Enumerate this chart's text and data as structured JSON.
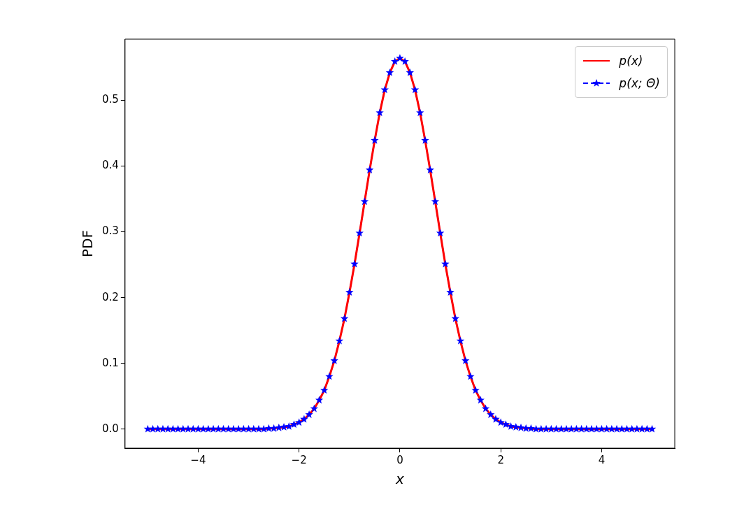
{
  "chart_data": {
    "type": "line",
    "xlabel": "x",
    "ylabel": "PDF",
    "x": [
      -5,
      -4.9,
      -4.8,
      -4.7,
      -4.6,
      -4.5,
      -4.4,
      -4.3,
      -4.2,
      -4.1,
      -4,
      -3.9,
      -3.8,
      -3.7,
      -3.6,
      -3.5,
      -3.4,
      -3.3,
      -3.2,
      -3.1,
      -3,
      -2.9,
      -2.8,
      -2.7,
      -2.6,
      -2.5,
      -2.4,
      -2.3,
      -2.2,
      -2.1,
      -2,
      -1.9,
      -1.8,
      -1.7,
      -1.6,
      -1.5,
      -1.4,
      -1.3,
      -1.2,
      -1.1,
      -1,
      -0.9,
      -0.8,
      -0.7,
      -0.6,
      -0.5,
      -0.4,
      -0.3,
      -0.2,
      -0.1,
      0,
      0.1,
      0.2,
      0.3,
      0.4,
      0.5,
      0.6,
      0.7,
      0.8,
      0.9,
      1,
      1.1,
      1.2,
      1.3,
      1.4,
      1.5,
      1.6,
      1.7,
      1.8,
      1.9,
      2,
      2.1,
      2.2,
      2.3,
      2.4,
      2.5,
      2.6,
      2.7,
      2.8,
      2.9,
      3,
      3.1,
      3.2,
      3.3,
      3.4,
      3.5,
      3.6,
      3.7,
      3.8,
      3.9,
      4,
      4.1,
      4.2,
      4.3,
      4.4,
      4.5,
      4.6,
      4.7,
      4.8,
      4.9,
      5
    ],
    "series": [
      {
        "name": "p(x)",
        "color": "#ff0000",
        "marker": "none",
        "line_style": "solid",
        "values": [
          0,
          0,
          0,
          0,
          0,
          0,
          0,
          0,
          0,
          0,
          0,
          0,
          0,
          0,
          0,
          0,
          0,
          0,
          0,
          0,
          0,
          0,
          0,
          0,
          0.001,
          0.001,
          0.002,
          0.003,
          0.004,
          0.007,
          0.01,
          0.015,
          0.022,
          0.031,
          0.044,
          0.059,
          0.08,
          0.104,
          0.134,
          0.168,
          0.208,
          0.251,
          0.298,
          0.346,
          0.394,
          0.439,
          0.481,
          0.516,
          0.542,
          0.559,
          0.564,
          0.559,
          0.542,
          0.516,
          0.481,
          0.439,
          0.394,
          0.346,
          0.298,
          0.251,
          0.208,
          0.168,
          0.134,
          0.104,
          0.08,
          0.059,
          0.044,
          0.031,
          0.022,
          0.015,
          0.01,
          0.007,
          0.004,
          0.003,
          0.002,
          0.001,
          0.001,
          0,
          0,
          0,
          0,
          0,
          0,
          0,
          0,
          0,
          0,
          0,
          0,
          0,
          0,
          0,
          0,
          0,
          0,
          0,
          0,
          0,
          0,
          0,
          0
        ]
      },
      {
        "name": "p(x; Θ)",
        "color": "#0000ff",
        "marker": "star",
        "line_style": "dashed",
        "values": [
          0,
          0,
          0,
          0,
          0,
          0,
          0,
          0,
          0,
          0,
          0,
          0,
          0,
          0,
          0,
          0,
          0,
          0,
          0,
          0,
          0,
          0,
          0,
          0,
          0.001,
          0.001,
          0.002,
          0.003,
          0.004,
          0.007,
          0.01,
          0.015,
          0.022,
          0.031,
          0.044,
          0.059,
          0.08,
          0.104,
          0.134,
          0.168,
          0.208,
          0.251,
          0.298,
          0.346,
          0.394,
          0.439,
          0.481,
          0.516,
          0.542,
          0.559,
          0.564,
          0.559,
          0.542,
          0.516,
          0.481,
          0.439,
          0.394,
          0.346,
          0.298,
          0.251,
          0.208,
          0.168,
          0.134,
          0.104,
          0.08,
          0.059,
          0.044,
          0.031,
          0.022,
          0.015,
          0.01,
          0.007,
          0.004,
          0.003,
          0.002,
          0.001,
          0.001,
          0,
          0,
          0,
          0,
          0,
          0,
          0,
          0,
          0,
          0,
          0,
          0,
          0,
          0,
          0,
          0,
          0,
          0,
          0,
          0,
          0,
          0,
          0,
          0
        ]
      }
    ],
    "xlim": [
      -5.45,
      5.45
    ],
    "ylim": [
      -0.029,
      0.593
    ],
    "xticks": [
      {
        "value": -4,
        "label": "−4"
      },
      {
        "value": -2,
        "label": "−2"
      },
      0,
      2,
      4
    ],
    "yticks": [
      {
        "value": 0,
        "label": "0.0"
      },
      0.1,
      0.2,
      0.3,
      0.4,
      0.5
    ],
    "legend": "top right"
  }
}
